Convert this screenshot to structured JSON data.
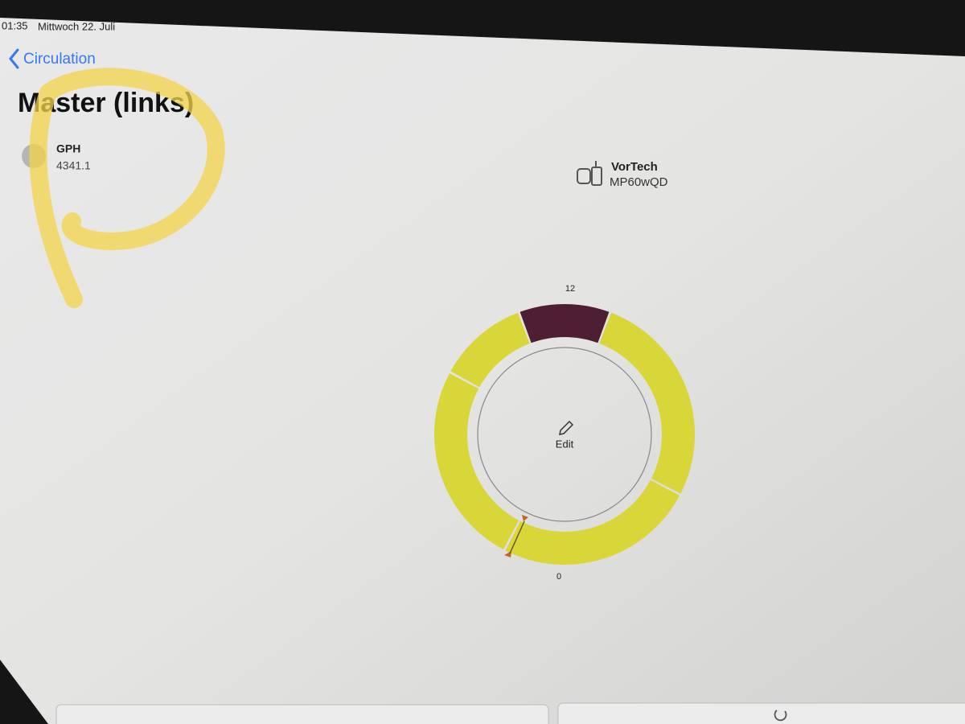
{
  "status_bar": {
    "time": "01:35",
    "date": "Mittwoch 22. Juli"
  },
  "nav": {
    "back": "Circulation"
  },
  "header": {
    "title": "Master (links)"
  },
  "reading": {
    "label": "GPH",
    "value": "4341.1"
  },
  "device": {
    "brand": "VorTech",
    "model": "MP60wQD"
  },
  "dial": {
    "top_label": "12",
    "bottom_label": "0",
    "center_action": "Edit"
  }
}
